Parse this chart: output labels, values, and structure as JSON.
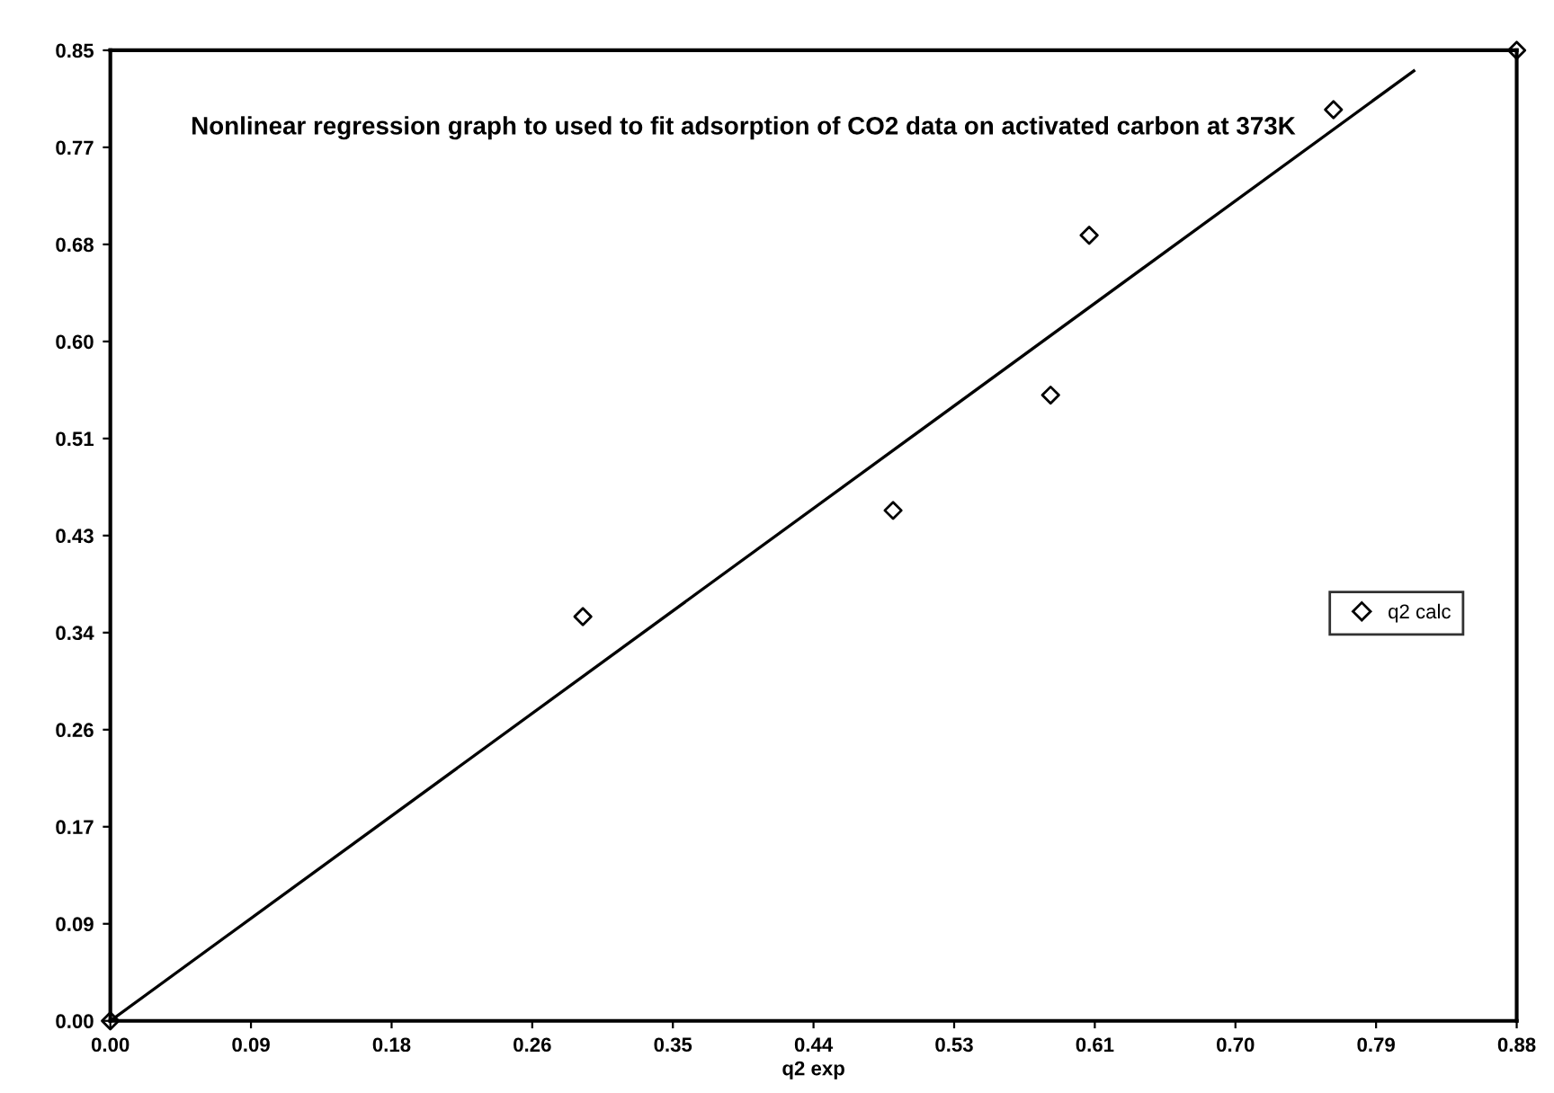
{
  "chart_data": {
    "type": "scatter",
    "title": "Nonlinear regression graph to used to fit adsorption of CO2 data on activated carbon at 373K",
    "xlabel": "q2 exp",
    "series": [
      {
        "name": "q2 calc",
        "color": "#000000",
        "marker": "diamond",
        "x": [
          0.0,
          0.294,
          0.487,
          0.585,
          0.609,
          0.761,
          0.875
        ],
        "values": [
          0.0,
          0.354,
          0.447,
          0.548,
          0.688,
          0.798,
          0.85
        ]
      },
      {
        "type": "line",
        "color": "#000000",
        "marker": "none",
        "line_style": "solid",
        "x": [
          0.0,
          0.811
        ],
        "values": [
          0.0,
          0.832
        ]
      }
    ],
    "xlim": [
      0,
      0.875
    ],
    "ylim": [
      0,
      0.85
    ],
    "xticks": [
      {
        "value": 0,
        "label": "0.00"
      },
      {
        "value": 0.0875,
        "label": "0.09"
      },
      {
        "value": 0.175,
        "label": "0.18"
      },
      {
        "value": 0.2625,
        "label": "0.26"
      },
      {
        "value": 0.35,
        "label": "0.35"
      },
      {
        "value": 0.4375,
        "label": "0.44"
      },
      {
        "value": 0.525,
        "label": "0.53"
      },
      {
        "value": 0.6125,
        "label": "0.61"
      },
      {
        "value": 0.7,
        "label": "0.70"
      },
      {
        "value": 0.7875,
        "label": "0.79"
      },
      {
        "value": 0.875,
        "label": "0.88"
      }
    ],
    "yticks": [
      {
        "value": 0,
        "label": "0.00"
      },
      {
        "value": 0.085,
        "label": "0.09"
      },
      {
        "value": 0.17,
        "label": "0.17"
      },
      {
        "value": 0.255,
        "label": "0.26"
      },
      {
        "value": 0.34,
        "label": "0.34"
      },
      {
        "value": 0.425,
        "label": "0.43"
      },
      {
        "value": 0.51,
        "label": "0.51"
      },
      {
        "value": 0.595,
        "label": "0.60"
      },
      {
        "value": 0.68,
        "label": "0.68"
      },
      {
        "value": 0.765,
        "label": "0.77"
      },
      {
        "value": 0.85,
        "label": "0.85"
      }
    ],
    "grid": false,
    "legend": "right"
  }
}
